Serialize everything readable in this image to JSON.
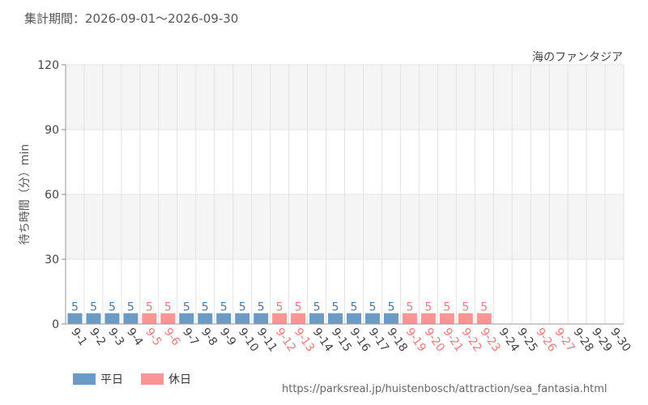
{
  "header": {
    "period": "集計期間：2026-09-01～2026-09-30"
  },
  "footer": {
    "url": "https://parksreal.jp/huistenbosch/attraction/sea_fantasia.html"
  },
  "colors": {
    "weekday": "#6b9ac4",
    "holiday": "#f99595",
    "weekday_label": "#4a78a8",
    "holiday_label": "#ef7b7b",
    "axis_text": "#555555",
    "band": "#f5f5f5",
    "grid": "#e2e2e2"
  },
  "chart_data": {
    "type": "bar",
    "title": "海のファンタジア",
    "ylabel": "待ち時間（分）min",
    "ylim": [
      0,
      120
    ],
    "yticks": [
      0,
      30,
      60,
      90,
      120
    ],
    "categories": [
      "9-1",
      "9-2",
      "9-3",
      "9-4",
      "9-5",
      "9-6",
      "9-7",
      "9-8",
      "9-9",
      "9-10",
      "9-11",
      "9-12",
      "9-13",
      "9-14",
      "9-15",
      "9-16",
      "9-17",
      "9-18",
      "9-19",
      "9-20",
      "9-21",
      "9-22",
      "9-23",
      "9-24",
      "9-25",
      "9-26",
      "9-27",
      "9-28",
      "9-29",
      "9-30"
    ],
    "values": [
      5,
      5,
      5,
      5,
      5,
      5,
      5,
      5,
      5,
      5,
      5,
      5,
      5,
      5,
      5,
      5,
      5,
      5,
      5,
      5,
      5,
      5,
      5,
      null,
      null,
      null,
      null,
      null,
      null,
      null
    ],
    "day_types": [
      "weekday",
      "weekday",
      "weekday",
      "weekday",
      "holiday",
      "holiday",
      "weekday",
      "weekday",
      "weekday",
      "weekday",
      "weekday",
      "holiday",
      "holiday",
      "weekday",
      "weekday",
      "weekday",
      "weekday",
      "weekday",
      "holiday",
      "holiday",
      "holiday",
      "holiday",
      "holiday",
      "weekday",
      "weekday",
      "holiday",
      "holiday",
      "weekday",
      "weekday",
      "weekday"
    ],
    "legend": [
      {
        "key": "weekday",
        "label": "平日"
      },
      {
        "key": "holiday",
        "label": "休日"
      }
    ],
    "grid": true,
    "legend_position": "bottom-left"
  }
}
